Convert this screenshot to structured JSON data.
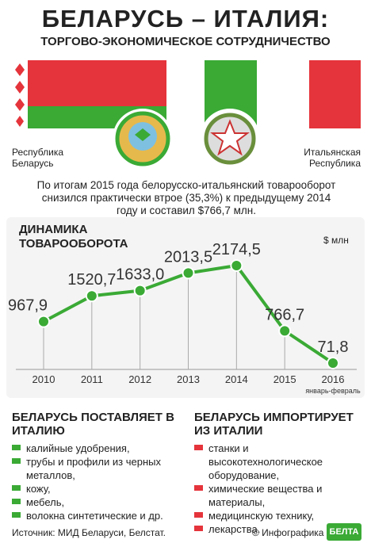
{
  "header": {
    "title": "БЕЛАРУСЬ – ИТАЛИЯ:",
    "subtitle": "ТОРГОВО-ЭКОНОМИЧЕСКОЕ СОТРУДНИЧЕСТВО"
  },
  "countries": {
    "left": "Республика Беларусь",
    "right": "Итальянская Республика"
  },
  "summary": "По итогам 2015 года белорусско-итальянский товарооборот снизился практически втрое (35,3%) к предыдущему 2014 году и составил $766,7 млн.",
  "chart_data": {
    "type": "line",
    "title": "ДИНАМИКА ТОВАРООБОРОТА",
    "unit_label": "$ млн",
    "categories": [
      "2010",
      "2011",
      "2012",
      "2013",
      "2014",
      "2015",
      "2016"
    ],
    "category_note": "январь-февраль",
    "values": [
      967.9,
      1520.7,
      1633.0,
      2013.5,
      2174.5,
      766.7,
      71.8
    ],
    "value_labels": [
      "967,9",
      "1520,7",
      "1633,0",
      "2013,5",
      "2174,5",
      "766,7",
      "71,8"
    ],
    "color": "#3aaa35"
  },
  "exports": {
    "title": "БЕЛАРУСЬ ПОСТАВЛЯЕТ В ИТАЛИЮ",
    "items": [
      "калийные удобрения,",
      "трубы и профили из черных металлов,",
      "кожу,",
      "мебель,",
      "волокна синтетические  и др."
    ]
  },
  "imports": {
    "title": "БЕЛАРУСЬ ИМПОРТИРУЕТ ИЗ ИТАЛИИ",
    "items": [
      "станки и высокотехнологическое оборудование,",
      "химические вещества и материалы,",
      "медицинскую технику,",
      "лекарства."
    ]
  },
  "footer": {
    "source": "Источник: МИД Беларуси, Белстат.",
    "credit": "© Инфографика",
    "logo": "БЕЛТА"
  }
}
